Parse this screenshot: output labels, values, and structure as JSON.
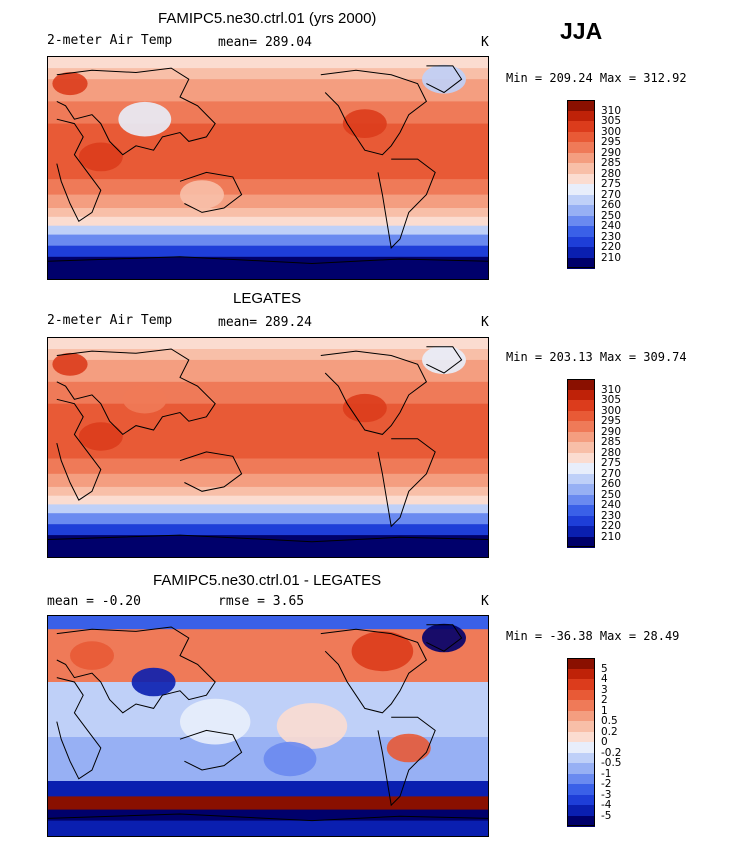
{
  "season": "JJA",
  "colors": {
    "temp_scale": [
      "#00006b",
      "#0a1fb0",
      "#1e3ed8",
      "#3a60e8",
      "#6a8af0",
      "#97b0f4",
      "#bfd0f8",
      "#e8eefb",
      "#fbdcd0",
      "#f8bfa8",
      "#f49e80",
      "#ef7a58",
      "#e85a36",
      "#dc3c1c",
      "#bf2208",
      "#8a1000"
    ],
    "diff_scale": [
      "#00006b",
      "#0a1fb0",
      "#1e3ed8",
      "#3a60e8",
      "#6a8af0",
      "#97b0f4",
      "#bfd0f8",
      "#e8eefb",
      "#fbdcd0",
      "#f8bfa8",
      "#f49e80",
      "#ef7a58",
      "#e85a36",
      "#dc3c1c",
      "#bf2208",
      "#8a1000"
    ],
    "land_outline": "#000000"
  },
  "chart_data": [
    {
      "type": "heatmap",
      "title": "FAMIPC5.ne30.ctrl.01 (yrs 2000)",
      "variable": "2-meter Air Temp",
      "stat_text": "mean= 289.04",
      "units": "K",
      "minmax_text": "Min = 209.24 Max = 312.92",
      "mean": 289.04,
      "min": 209.24,
      "max": 312.92,
      "colorbar_levels": [
        "310",
        "305",
        "300",
        "295",
        "290",
        "285",
        "280",
        "275",
        "270",
        "260",
        "250",
        "240",
        "230",
        "220",
        "210"
      ]
    },
    {
      "type": "heatmap",
      "title": "LEGATES",
      "variable": "2-meter Air Temp",
      "stat_text": "mean= 289.24",
      "units": "K",
      "minmax_text": "Min = 203.13 Max = 309.74",
      "mean": 289.24,
      "min": 203.13,
      "max": 309.74,
      "colorbar_levels": [
        "310",
        "305",
        "300",
        "295",
        "290",
        "285",
        "280",
        "275",
        "270",
        "260",
        "250",
        "240",
        "230",
        "220",
        "210"
      ]
    },
    {
      "type": "heatmap",
      "title": "FAMIPC5.ne30.ctrl.01 - LEGATES",
      "stat_left": "mean =  -0.20",
      "stat_right": "rmse =   3.65",
      "units": "K",
      "minmax_text": "Min = -36.38 Max =  28.49",
      "mean": -0.2,
      "rmse": 3.65,
      "min": -36.38,
      "max": 28.49,
      "colorbar_levels": [
        "5",
        "4",
        "3",
        "2",
        "1",
        "0.5",
        "0.2",
        "0",
        "-0.2",
        "-0.5",
        "-1",
        "-2",
        "-3",
        "-4",
        "-5"
      ]
    }
  ]
}
